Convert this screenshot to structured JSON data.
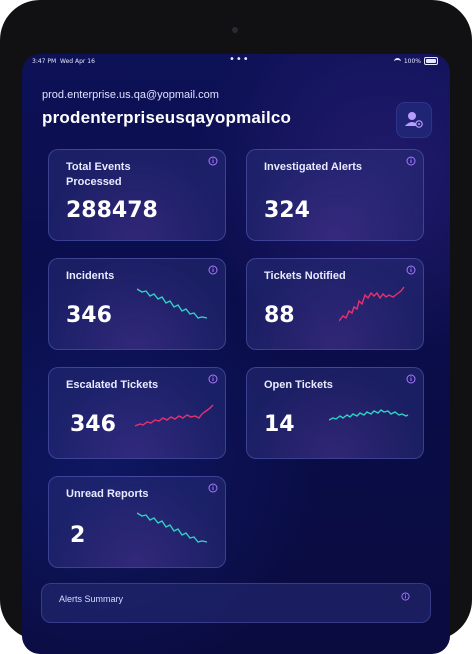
{
  "status_bar": {
    "time": "3:47 PM",
    "date": "Wed Apr 16",
    "battery": "100%"
  },
  "account": {
    "email": "prod.enterprise.us.qa@yopmail.com",
    "username": "prodenterpriseusqayopmailco"
  },
  "cards": [
    {
      "label": "Total Events Processed",
      "value": "288478"
    },
    {
      "label": "Investigated Alerts",
      "value": "324"
    },
    {
      "label": "Incidents",
      "value": "346"
    },
    {
      "label": "Tickets Notified",
      "value": "88"
    },
    {
      "label": "Escalated Tickets",
      "value": "346"
    },
    {
      "label": "Open Tickets",
      "value": "14"
    },
    {
      "label": "Unread Reports",
      "value": "2"
    }
  ],
  "alerts_summary": {
    "title": "Alerts Summary"
  },
  "colors": {
    "teal_trend": "#2fd3c4",
    "pink_trend": "#e5336f",
    "info_icon": "#a979ff"
  },
  "icons": [
    "info-icon",
    "profile-settings-icon",
    "wifi-icon",
    "battery-icon"
  ]
}
